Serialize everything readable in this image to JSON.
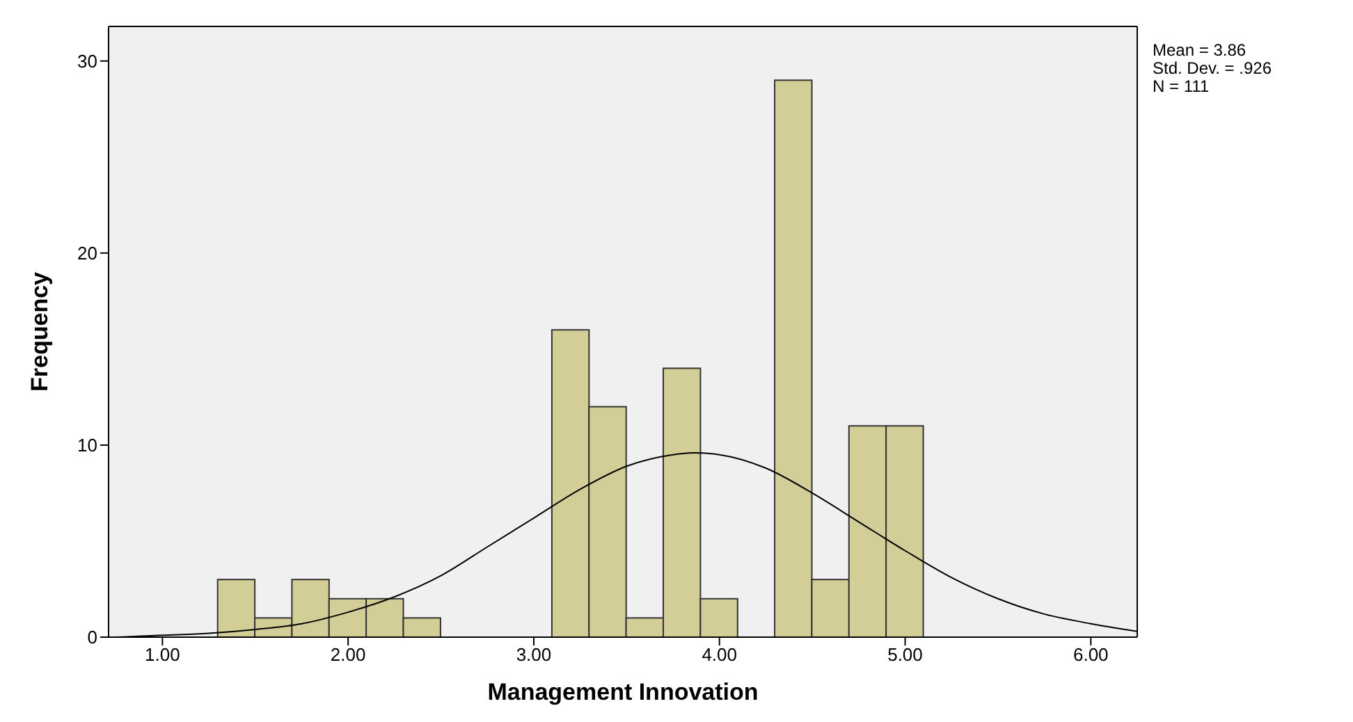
{
  "chart_data": {
    "type": "histogram",
    "xlabel": "Management Innovation",
    "ylabel": "Frequency",
    "bins": [
      1.3,
      1.5,
      1.7,
      1.9,
      2.1,
      2.3,
      2.5,
      2.7,
      2.9,
      3.1,
      3.3,
      3.5,
      3.7,
      3.9,
      4.1,
      4.3,
      4.5,
      4.7,
      4.9,
      5.1
    ],
    "values": [
      3,
      1,
      3,
      2,
      2,
      1,
      0,
      0,
      0,
      16,
      12,
      1,
      14,
      2,
      0,
      29,
      3,
      11,
      11
    ],
    "color": "#d3ce97",
    "series": [
      {
        "type": "line",
        "color": "#000000",
        "x": [
          0.75,
          1.0,
          1.25,
          1.5,
          1.75,
          2.0,
          2.25,
          2.5,
          2.75,
          3.0,
          3.25,
          3.5,
          3.75,
          3.86,
          4.0,
          4.25,
          4.5,
          4.75,
          5.0,
          5.25,
          5.5,
          5.75,
          6.0,
          6.25
        ],
        "values": [
          0.0,
          0.1,
          0.2,
          0.4,
          0.7,
          1.3,
          2.1,
          3.2,
          4.7,
          6.2,
          7.7,
          8.9,
          9.5,
          9.6,
          9.5,
          8.8,
          7.5,
          6.0,
          4.5,
          3.1,
          2.0,
          1.2,
          0.7,
          0.3
        ]
      }
    ],
    "xlim": [
      0.71,
      6.25
    ],
    "xticks": [
      {
        "value": 1,
        "label": "1.00"
      },
      {
        "value": 2,
        "label": "2.00"
      },
      {
        "value": 3,
        "label": "3.00"
      },
      {
        "value": 4,
        "label": "4.00"
      },
      {
        "value": 5,
        "label": "5.00"
      },
      {
        "value": 6,
        "label": "6.00"
      }
    ],
    "ylim": [
      0,
      31.8
    ],
    "yticks": [
      0,
      10,
      20,
      30
    ],
    "annotations": [
      "Mean = 3.86",
      "Std. Dev. = .926",
      "N = 111"
    ]
  }
}
